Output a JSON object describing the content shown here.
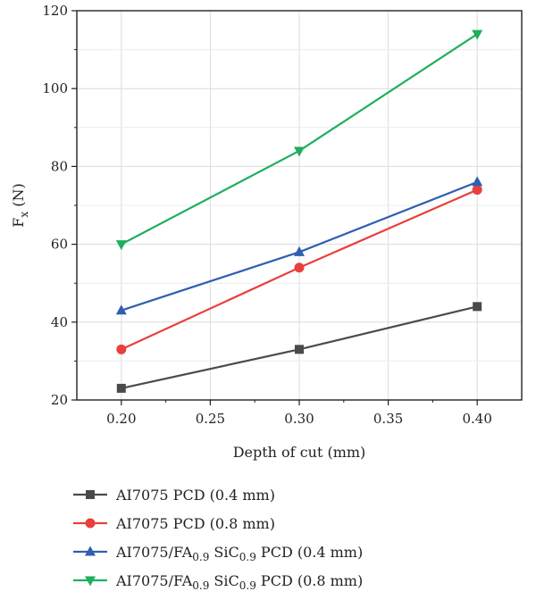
{
  "chart_data": {
    "type": "line",
    "xlabel": "Depth of cut (mm)",
    "ylabel": {
      "main": "F",
      "sub": "x",
      "suffix": " (N)"
    },
    "xlim": [
      0.175,
      0.425
    ],
    "ylim": [
      20,
      120
    ],
    "xticks": [
      0.2,
      0.25,
      0.3,
      0.35,
      0.4
    ],
    "xtick_labels": [
      "0.20",
      "0.25",
      "0.30",
      "0.35",
      "0.40"
    ],
    "yticks": [
      20,
      40,
      60,
      80,
      100,
      120
    ],
    "ytick_labels": [
      "20",
      "40",
      "60",
      "80",
      "100",
      "120"
    ],
    "grid": true,
    "legend_position": "below",
    "x": [
      0.2,
      0.3,
      0.4
    ],
    "series": [
      {
        "name_parts": [
          [
            "AI7075 PCD (0.4 mm)",
            ""
          ]
        ],
        "values": [
          23,
          33,
          44
        ],
        "color": "#4a4a4a",
        "marker": "square"
      },
      {
        "name_parts": [
          [
            "AI7075 PCD (0.8 mm)",
            ""
          ]
        ],
        "values": [
          33,
          54,
          74
        ],
        "color": "#e8403c",
        "marker": "circle"
      },
      {
        "name_parts": [
          [
            "AI7075/FA",
            ""
          ],
          [
            "0.9",
            "sub"
          ],
          [
            " SiC",
            ""
          ],
          [
            "0.9",
            "sub"
          ],
          [
            " PCD (0.4 mm)",
            ""
          ]
        ],
        "values": [
          43,
          58,
          76
        ],
        "color": "#2f5fb0",
        "marker": "triangle-up"
      },
      {
        "name_parts": [
          [
            "AI7075/FA",
            ""
          ],
          [
            "0.9",
            "sub"
          ],
          [
            " SiC",
            ""
          ],
          [
            "0.9",
            "sub"
          ],
          [
            " PCD (0.8 mm)",
            ""
          ]
        ],
        "values": [
          60,
          84,
          114
        ],
        "color": "#1fae5f",
        "marker": "triangle-down"
      }
    ]
  }
}
